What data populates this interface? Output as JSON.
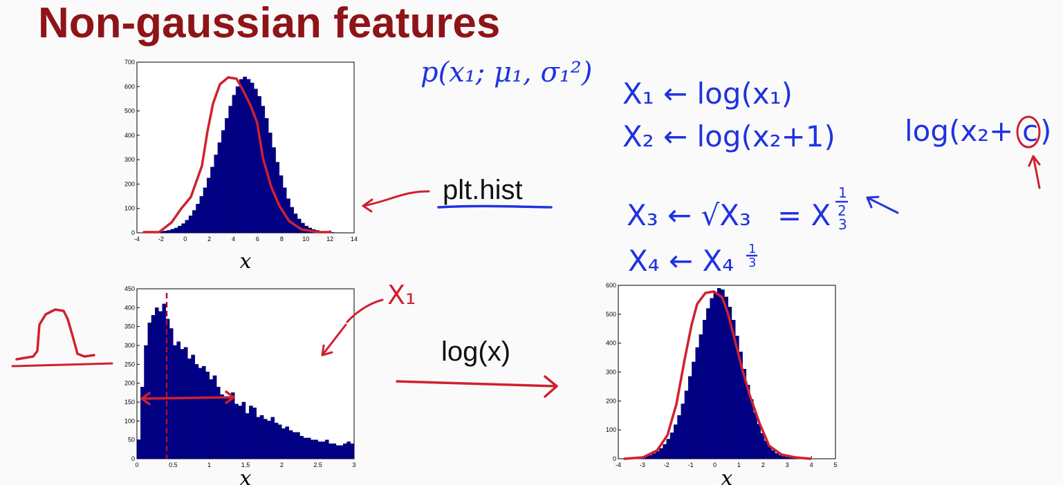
{
  "slide": {
    "title": "Non-gaussian features",
    "formula_top": "p(x₁; μ₁, σ₁²)",
    "label_plt_hist": "plt.hist",
    "label_log": "log(x)",
    "handwritten": {
      "t1": "X₁ ← log(x₁)",
      "t2": "X₂ ← log(x₂+1)",
      "t3_left": "X₃ ← √X₃",
      "t3_right": "= X",
      "t4": "X₄ ← X₄",
      "t5": "log(x₂+",
      "t5_c": "c",
      "t5_end": ")",
      "annot_x1": "X₁"
    }
  },
  "colors": {
    "title": "#8e1418",
    "ink": "#1f33e0",
    "red": "#d0202e",
    "bar": "#00008b"
  },
  "chart_data": [
    {
      "type": "bar",
      "title": "",
      "xlabel": "x",
      "ylabel": "",
      "xlim": [
        -4,
        14
      ],
      "ylim": [
        0,
        700
      ],
      "xticks": [
        -4,
        -2,
        0,
        2,
        4,
        6,
        8,
        10,
        12,
        14
      ],
      "yticks": [
        0,
        100,
        200,
        300,
        400,
        500,
        600,
        700
      ],
      "bin_start": -3,
      "bin_width": 0.3,
      "values": [
        2,
        3,
        4,
        6,
        8,
        10,
        15,
        20,
        28,
        38,
        52,
        70,
        92,
        118,
        150,
        185,
        225,
        270,
        320,
        370,
        420,
        470,
        520,
        565,
        600,
        630,
        640,
        630,
        615,
        590,
        560,
        520,
        470,
        410,
        350,
        290,
        235,
        185,
        140,
        105,
        78,
        57,
        40,
        28,
        20,
        14,
        10,
        6,
        4,
        3,
        2,
        1,
        1,
        1,
        0,
        0,
        0,
        0,
        0,
        0
      ],
      "grid": false
    },
    {
      "type": "bar",
      "title": "",
      "xlabel": "x",
      "ylabel": "",
      "xlim": [
        0,
        3
      ],
      "ylim": [
        0,
        450
      ],
      "xticks": [
        "0",
        "0.5",
        "1",
        "1.5",
        "2",
        "2.5",
        "3"
      ],
      "yticks": [
        0,
        50,
        100,
        150,
        200,
        250,
        300,
        350,
        400,
        450
      ],
      "bin_start": 0,
      "bin_width": 0.05,
      "values": [
        50,
        190,
        300,
        360,
        380,
        400,
        390,
        410,
        370,
        345,
        300,
        310,
        290,
        295,
        265,
        275,
        250,
        240,
        245,
        230,
        210,
        220,
        190,
        170,
        160,
        165,
        175,
        145,
        140,
        150,
        120,
        140,
        135,
        110,
        115,
        105,
        100,
        110,
        95,
        90,
        80,
        85,
        75,
        70,
        70,
        60,
        55,
        55,
        50,
        50,
        45,
        45,
        50,
        40,
        40,
        35,
        35,
        40,
        45,
        40
      ],
      "grid": false
    },
    {
      "type": "bar",
      "title": "",
      "xlabel": "x",
      "ylabel": "",
      "xlim": [
        -4,
        5
      ],
      "ylim": [
        0,
        600
      ],
      "xticks": [
        -4,
        -3,
        -2,
        -1,
        0,
        1,
        2,
        3,
        4,
        5
      ],
      "yticks": [
        0,
        100,
        200,
        300,
        400,
        500,
        600
      ],
      "bin_start": -3.5,
      "bin_width": 0.15,
      "values": [
        1,
        2,
        3,
        5,
        8,
        12,
        18,
        26,
        36,
        50,
        68,
        90,
        118,
        150,
        190,
        235,
        285,
        335,
        385,
        430,
        480,
        520,
        555,
        575,
        590,
        585,
        560,
        525,
        480,
        425,
        370,
        310,
        255,
        205,
        160,
        120,
        88,
        62,
        43,
        29,
        19,
        12,
        8,
        5,
        3,
        2,
        1,
        1,
        0,
        0
      ],
      "grid": false
    }
  ]
}
